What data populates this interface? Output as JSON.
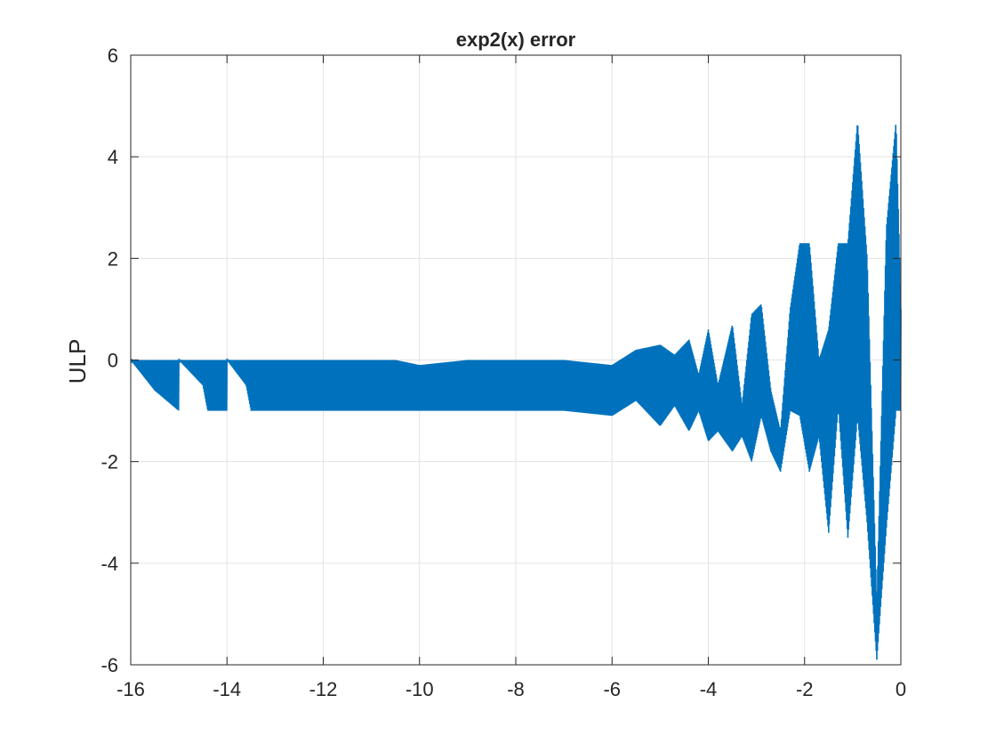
{
  "chart_data": {
    "type": "line",
    "title": "exp2(x) error",
    "xlabel": "",
    "ylabel": "ULP",
    "xlim": [
      -16,
      0
    ],
    "ylim": [
      -6,
      6
    ],
    "xticks": [
      -16,
      -14,
      -12,
      -10,
      -8,
      -6,
      -4,
      -2,
      0
    ],
    "yticks": [
      -6,
      -4,
      -2,
      0,
      2,
      4,
      6
    ],
    "xtick_labels": [
      "-16",
      "-14",
      "-12",
      "-10",
      "-8",
      "-6",
      "-4",
      "-2",
      "0"
    ],
    "ytick_labels": [
      "-6",
      "-4",
      "-2",
      "0",
      "2",
      "4",
      "6"
    ],
    "grid": true,
    "colors": {
      "line": "#0072BD",
      "grid": "#e3e3e3",
      "axes": "#262626"
    },
    "series": [
      {
        "description_points": {
          "x": [
            -16,
            -15.5,
            -15.0,
            -15.0,
            -14.5,
            -14.4,
            -14.0,
            -14.0,
            -13.6,
            -13.5,
            -13.0,
            -12.5,
            -12.0,
            -11.5,
            -11.0,
            -10.5,
            -10.0,
            -9.0,
            -8.0,
            -7.0,
            -6.0,
            -5.5,
            -5.0,
            -4.7,
            -4.4,
            -4.2,
            -4.0,
            -3.8,
            -3.5,
            -3.3,
            -3.1,
            -2.9,
            -2.7,
            -2.5,
            -2.3,
            -2.1,
            -1.9,
            -1.7,
            -1.5,
            -1.3,
            -1.1,
            -0.9,
            -0.7,
            -0.5,
            -0.3,
            -0.1,
            0
          ],
          "y_upper": [
            0,
            0,
            0,
            0,
            0,
            0,
            0,
            0,
            0,
            0,
            0,
            0,
            0,
            0,
            0,
            0,
            -0.1,
            0,
            0,
            0,
            -0.1,
            0.2,
            0.3,
            0.1,
            0.4,
            -0.3,
            0.6,
            -0.5,
            0.7,
            -0.9,
            0.9,
            1.1,
            -0.6,
            -1.4,
            1.0,
            2.3,
            2.3,
            0,
            0.6,
            2.3,
            2.3,
            4.7,
            2.0,
            -4.8,
            2.6,
            4.7,
            1.0
          ],
          "y_lower": [
            0,
            -0.6,
            -1.0,
            0,
            -0.5,
            -1.0,
            -1.0,
            0,
            -0.5,
            -1.0,
            -1.0,
            -1.0,
            -1.0,
            -1.0,
            -1.0,
            -1.0,
            -1.0,
            -1.0,
            -1.0,
            -1.0,
            -1.1,
            -0.8,
            -1.3,
            -0.9,
            -1.4,
            -1.0,
            -1.6,
            -1.4,
            -1.8,
            -1.5,
            -2.0,
            -1.1,
            -1.8,
            -2.2,
            -1.0,
            -1.1,
            -2.2,
            -1.5,
            -3.4,
            -0.9,
            -3.5,
            -1.1,
            -3.2,
            -5.9,
            -3.3,
            -1.0,
            -1.0
          ]
        }
      }
    ]
  }
}
